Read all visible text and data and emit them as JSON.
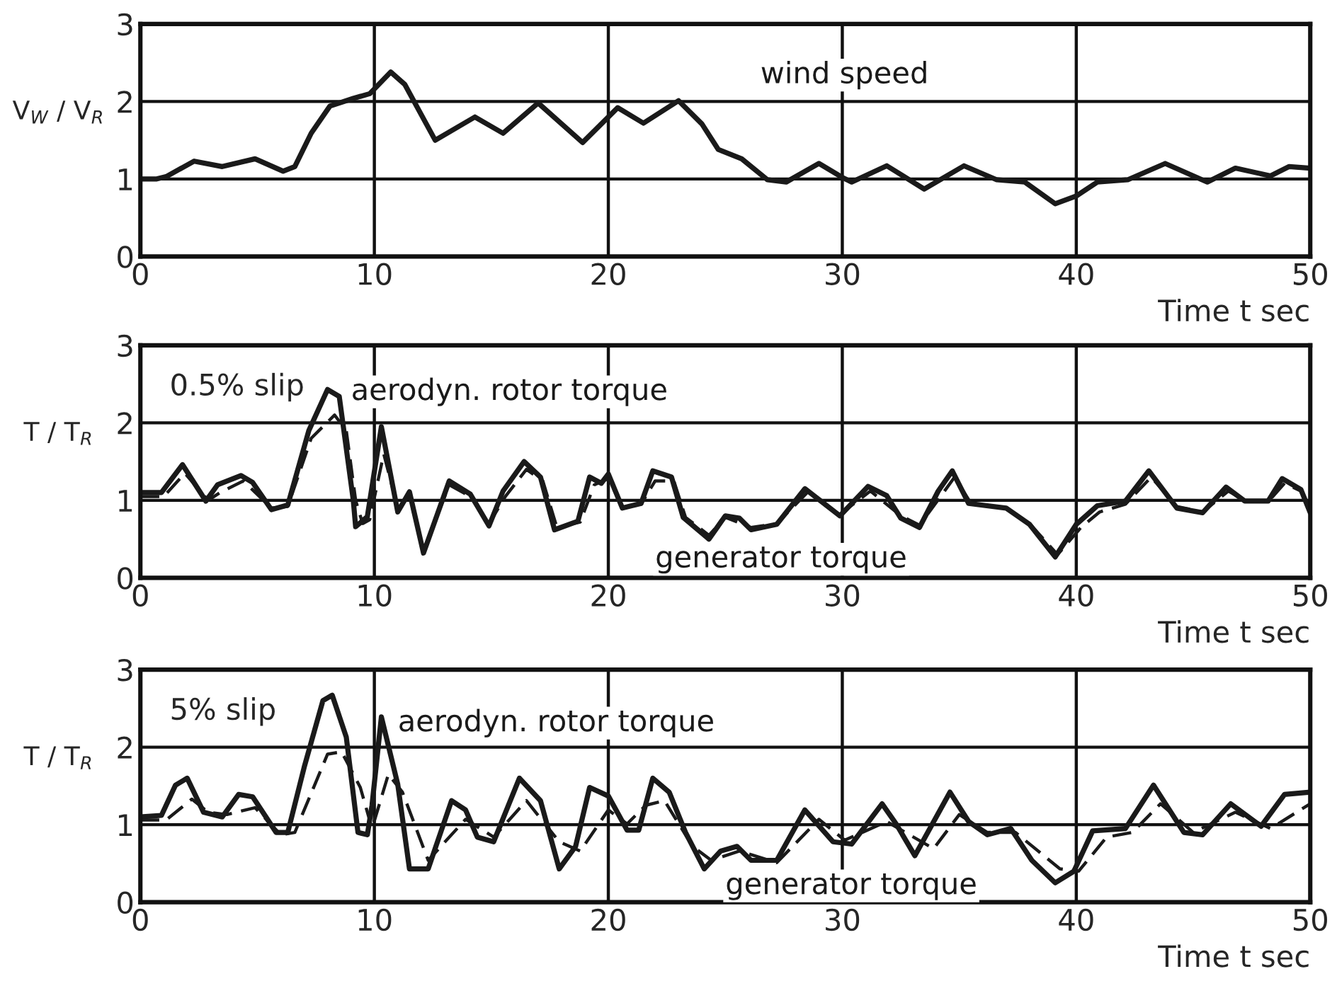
{
  "chart_data": [
    {
      "type": "line",
      "ylabel": "V$_{W}$ / V$_{R}$",
      "xlabel": "Time t sec",
      "xlim": [
        0,
        50
      ],
      "xticks": [
        0,
        10,
        20,
        30,
        40,
        50
      ],
      "ylim": [
        0,
        3
      ],
      "yticks": [
        0,
        1,
        2,
        3
      ],
      "grid": true,
      "legend": false,
      "series": [
        {
          "name": "wind speed",
          "color": "#1a1a1a",
          "line_style": "solid",
          "x": [
            0,
            0.7,
            1.1,
            2.3,
            3.5,
            4.9,
            6.1,
            6.6,
            7.3,
            8.1,
            9.1,
            9.8,
            10.7,
            11.3,
            12.6,
            14.3,
            15.5,
            17.0,
            18.9,
            20.4,
            21.5,
            23.0,
            24.0,
            24.7,
            25.7,
            26.8,
            27.6,
            29.0,
            30,
            30.4,
            31.9,
            33.5,
            35.2,
            36.6,
            37.8,
            39.1,
            40,
            40.9,
            42.2,
            43.8,
            45.6,
            46.8,
            48.3,
            49.1,
            50
          ],
          "values": [
            1.0,
            1.0,
            1.03,
            1.23,
            1.16,
            1.26,
            1.1,
            1.16,
            1.59,
            1.94,
            2.04,
            2.1,
            2.38,
            2.22,
            1.5,
            1.8,
            1.59,
            1.98,
            1.47,
            1.92,
            1.72,
            2.01,
            1.71,
            1.38,
            1.26,
            0.99,
            0.96,
            1.2,
            1.02,
            0.96,
            1.17,
            0.87,
            1.17,
            0.99,
            0.96,
            0.68,
            0.78,
            0.96,
            0.99,
            1.2,
            0.96,
            1.14,
            1.04,
            1.16,
            1.14
          ]
        }
      ]
    },
    {
      "type": "line",
      "ylabel": "T / T$_{R}$",
      "xlabel": "Time t sec",
      "xlim": [
        0,
        50
      ],
      "xticks": [
        0,
        10,
        20,
        30,
        40,
        50
      ],
      "ylim": [
        0,
        3
      ],
      "yticks": [
        0,
        1,
        2,
        3
      ],
      "grid": true,
      "legend": false,
      "annotations": [
        "0.5% slip"
      ],
      "series": [
        {
          "name": "aerodyn. rotor torque",
          "color": "#1a1a1a",
          "line_style": "solid",
          "x": [
            0,
            0.9,
            1.8,
            2.8,
            3.3,
            4.3,
            4.8,
            5.6,
            6.3,
            7.2,
            8.0,
            8.5,
            9.1,
            9.2,
            9.7,
            10.3,
            11.0,
            11.5,
            12.1,
            13.2,
            14.1,
            14.9,
            15.5,
            16.4,
            17.1,
            17.7,
            18.7,
            19.2,
            19.7,
            20.0,
            20.6,
            21.4,
            21.9,
            22.7,
            23.2,
            24.3,
            25.0,
            25.6,
            26.1,
            27.2,
            28.4,
            29.9,
            31.1,
            31.9,
            32.5,
            33.3,
            34.1,
            34.7,
            35.4,
            37.0,
            38.0,
            39.1,
            40.0,
            40.9,
            42.1,
            43.1,
            44.3,
            45.4,
            46.4,
            47.2,
            48.2,
            48.8,
            49.6,
            50
          ],
          "values": [
            1.1,
            1.1,
            1.46,
            0.99,
            1.2,
            1.32,
            1.23,
            0.88,
            0.94,
            1.9,
            2.43,
            2.34,
            1.0,
            0.66,
            0.79,
            1.95,
            0.85,
            1.11,
            0.32,
            1.25,
            1.08,
            0.67,
            1.12,
            1.5,
            1.3,
            0.62,
            0.73,
            1.3,
            1.22,
            1.34,
            0.9,
            0.96,
            1.38,
            1.3,
            0.78,
            0.5,
            0.8,
            0.77,
            0.62,
            0.69,
            1.15,
            0.8,
            1.18,
            1.06,
            0.77,
            0.65,
            1.12,
            1.38,
            0.96,
            0.9,
            0.69,
            0.27,
            0.69,
            0.93,
            0.99,
            1.38,
            0.9,
            0.84,
            1.17,
            0.99,
            0.99,
            1.28,
            1.14,
            0.84
          ]
        },
        {
          "name": "generator torque",
          "color": "#1a1a1a",
          "line_style": "dashed",
          "x": [
            0,
            1.0,
            1.9,
            2.9,
            3.4,
            4.4,
            5.6,
            6.3,
            7.3,
            8.3,
            8.8,
            9.2,
            9.5,
            9.8,
            10.4,
            11.0,
            11.5,
            12.1,
            13.2,
            14.1,
            14.9,
            15.6,
            16.5,
            17.2,
            17.8,
            18.8,
            19.4,
            20.0,
            20.6,
            21.4,
            22.0,
            22.8,
            23.3,
            24.3,
            25.0,
            26.1,
            27.2,
            28.5,
            29.9,
            31.2,
            32.5,
            33.3,
            34.2,
            34.8,
            35.5,
            37.0,
            38.0,
            39.2,
            40.2,
            41.0,
            42.1,
            43.2,
            44.3,
            45.4,
            46.5,
            47.2,
            48.2,
            48.9,
            49.6,
            50
          ],
          "values": [
            1.05,
            1.05,
            1.35,
            1.0,
            1.1,
            1.25,
            0.9,
            0.92,
            1.8,
            2.1,
            1.9,
            1.0,
            0.7,
            0.75,
            1.6,
            0.9,
            1.05,
            0.35,
            1.2,
            1.05,
            0.7,
            1.05,
            1.4,
            1.25,
            0.65,
            0.72,
            1.2,
            1.28,
            0.92,
            0.95,
            1.25,
            1.25,
            0.78,
            0.55,
            0.78,
            0.65,
            0.7,
            1.1,
            0.82,
            1.12,
            0.8,
            0.68,
            1.05,
            1.3,
            0.96,
            0.9,
            0.7,
            0.3,
            0.65,
            0.85,
            0.95,
            1.3,
            0.92,
            0.85,
            1.12,
            1.0,
            0.98,
            1.22,
            1.12,
            0.88
          ]
        }
      ]
    },
    {
      "type": "line",
      "ylabel": "T / T$_{R}$",
      "xlabel": "Time t sec",
      "xlim": [
        0,
        50
      ],
      "xticks": [
        0,
        10,
        20,
        30,
        40,
        50
      ],
      "ylim": [
        0,
        3
      ],
      "yticks": [
        0,
        1,
        2,
        3
      ],
      "grid": true,
      "legend": false,
      "annotations": [
        "5% slip"
      ],
      "series": [
        {
          "name": "aerodyn. rotor torque",
          "color": "#1a1a1a",
          "line_style": "solid",
          "x": [
            0,
            0.9,
            1.5,
            2.0,
            2.7,
            3.5,
            4.2,
            4.8,
            5.8,
            6.3,
            7.0,
            7.8,
            8.2,
            8.8,
            9.3,
            9.7,
            9.9,
            10.3,
            11.0,
            11.5,
            12.3,
            13.3,
            13.9,
            14.4,
            15.1,
            16.2,
            17.1,
            17.9,
            18.6,
            19.2,
            20.0,
            20.8,
            21.3,
            21.9,
            22.6,
            23.3,
            24.1,
            24.8,
            25.5,
            26.1,
            27.2,
            28.4,
            29.6,
            30.4,
            31.7,
            32.3,
            33.1,
            34.6,
            35.4,
            36.2,
            37.2,
            38.1,
            39.1,
            39.9,
            40.7,
            42.1,
            43.3,
            44.6,
            45.4,
            46.6,
            47.9,
            48.9,
            50
          ],
          "values": [
            1.1,
            1.12,
            1.51,
            1.6,
            1.16,
            1.1,
            1.39,
            1.36,
            0.9,
            0.9,
            1.74,
            2.6,
            2.67,
            2.13,
            0.9,
            0.87,
            1.25,
            2.39,
            1.52,
            0.43,
            0.43,
            1.31,
            1.19,
            0.84,
            0.78,
            1.6,
            1.31,
            0.43,
            0.72,
            1.48,
            1.37,
            0.93,
            0.93,
            1.6,
            1.42,
            0.9,
            0.43,
            0.66,
            0.72,
            0.54,
            0.54,
            1.19,
            0.78,
            0.75,
            1.27,
            1.01,
            0.6,
            1.42,
            1.04,
            0.87,
            0.95,
            0.54,
            0.25,
            0.4,
            0.92,
            0.95,
            1.51,
            0.9,
            0.87,
            1.27,
            0.98,
            1.39,
            1.42
          ]
        },
        {
          "name": "generator torque",
          "color": "#1a1a1a",
          "line_style": "dashed",
          "x": [
            0,
            1.1,
            2.2,
            2.9,
            3.7,
            4.9,
            6.0,
            6.6,
            8.0,
            8.6,
            9.4,
            9.9,
            10.6,
            11.2,
            12.3,
            13.9,
            15.1,
            16.5,
            17.9,
            18.8,
            20.0,
            20.8,
            21.6,
            22.4,
            23.6,
            24.4,
            25.6,
            27.2,
            29.0,
            30.1,
            31.9,
            33.9,
            35.0,
            36.2,
            37.4,
            39.3,
            40.1,
            41.3,
            42.4,
            43.6,
            45.0,
            46.8,
            48.3,
            50
          ],
          "values": [
            1.06,
            1.06,
            1.33,
            1.16,
            1.13,
            1.22,
            0.87,
            0.9,
            1.91,
            1.94,
            1.48,
            0.95,
            1.65,
            1.42,
            0.54,
            1.07,
            0.84,
            1.31,
            0.78,
            0.66,
            1.19,
            1.01,
            1.25,
            1.31,
            0.72,
            0.54,
            0.66,
            0.51,
            1.07,
            0.8,
            1.04,
            0.69,
            1.13,
            0.9,
            0.9,
            0.43,
            0.4,
            0.84,
            0.9,
            1.27,
            0.9,
            1.16,
            0.95,
            1.27
          ]
        }
      ]
    }
  ]
}
